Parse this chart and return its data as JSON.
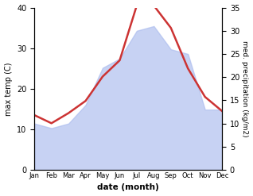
{
  "months": [
    "Jan",
    "Feb",
    "Mar",
    "Apr",
    "May",
    "Jun",
    "Jul",
    "Aug",
    "Sep",
    "Oct",
    "Nov",
    "Dec"
  ],
  "month_indices": [
    1,
    2,
    3,
    4,
    5,
    6,
    7,
    8,
    9,
    10,
    11,
    12
  ],
  "temp_max": [
    13.5,
    11.5,
    14.0,
    17.0,
    23.0,
    27.0,
    40.5,
    40.5,
    35.0,
    25.0,
    18.0,
    14.5
  ],
  "temp_color": "#cc3333",
  "temp_lw": 1.8,
  "precip_kg": [
    10.0,
    9.0,
    10.0,
    14.0,
    22.0,
    24.0,
    30.0,
    31.0,
    26.0,
    25.0,
    13.0,
    13.0
  ],
  "precip_color": "#aabbee",
  "precip_alpha": 0.65,
  "ylabel_left": "max temp (C)",
  "ylabel_right": "med. precipitation (kg/m2)",
  "xlabel": "date (month)",
  "ylim_left": [
    0,
    40
  ],
  "ylim_right": [
    0,
    35
  ],
  "yticks_left": [
    0,
    10,
    20,
    30,
    40
  ],
  "yticks_right": [
    0,
    5,
    10,
    15,
    20,
    25,
    30,
    35
  ],
  "precip_scale_factor": 1.142857,
  "bg_color": "#ffffff",
  "fig_width": 3.18,
  "fig_height": 2.47,
  "dpi": 100
}
